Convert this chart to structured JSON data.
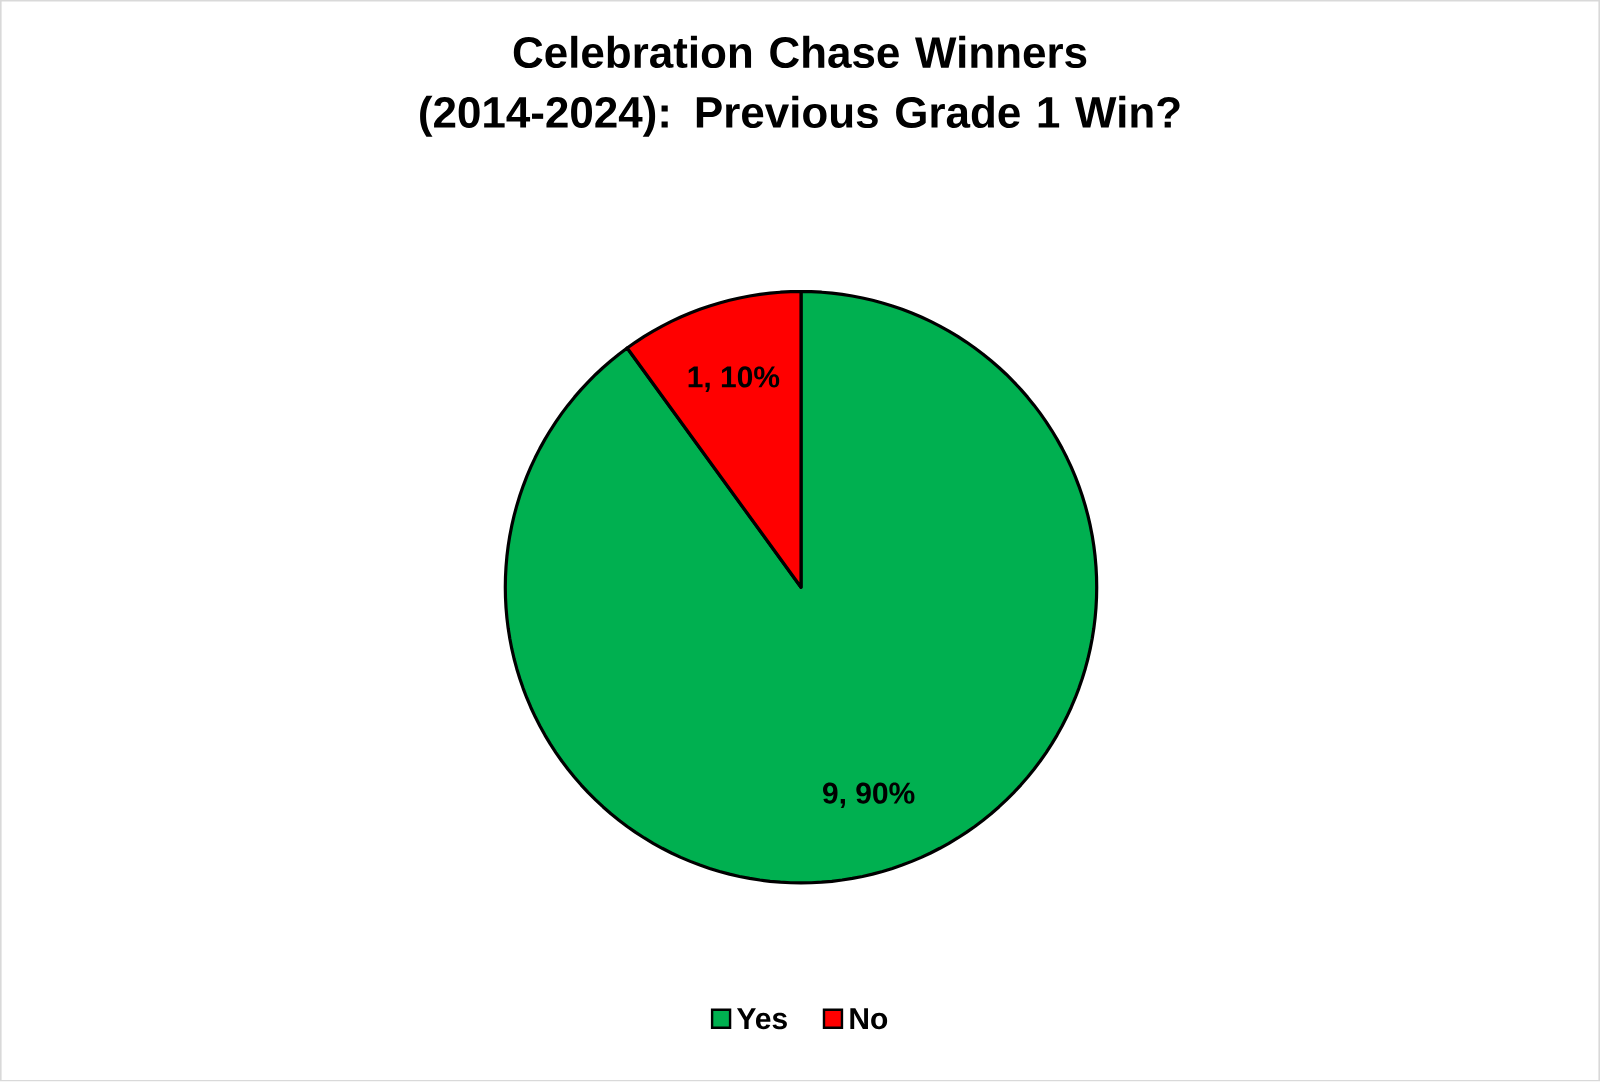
{
  "chart_data": {
    "type": "pie",
    "title": "Celebration Chase Winners (2014-2024): Previous Grade 1 Win?",
    "categories": [
      "Yes",
      "No"
    ],
    "values": [
      9,
      1
    ],
    "colors": [
      "#00b050",
      "#ff0000"
    ],
    "value_labels": [
      "9, 90%",
      "1, 10%"
    ],
    "legend": "bottom"
  }
}
